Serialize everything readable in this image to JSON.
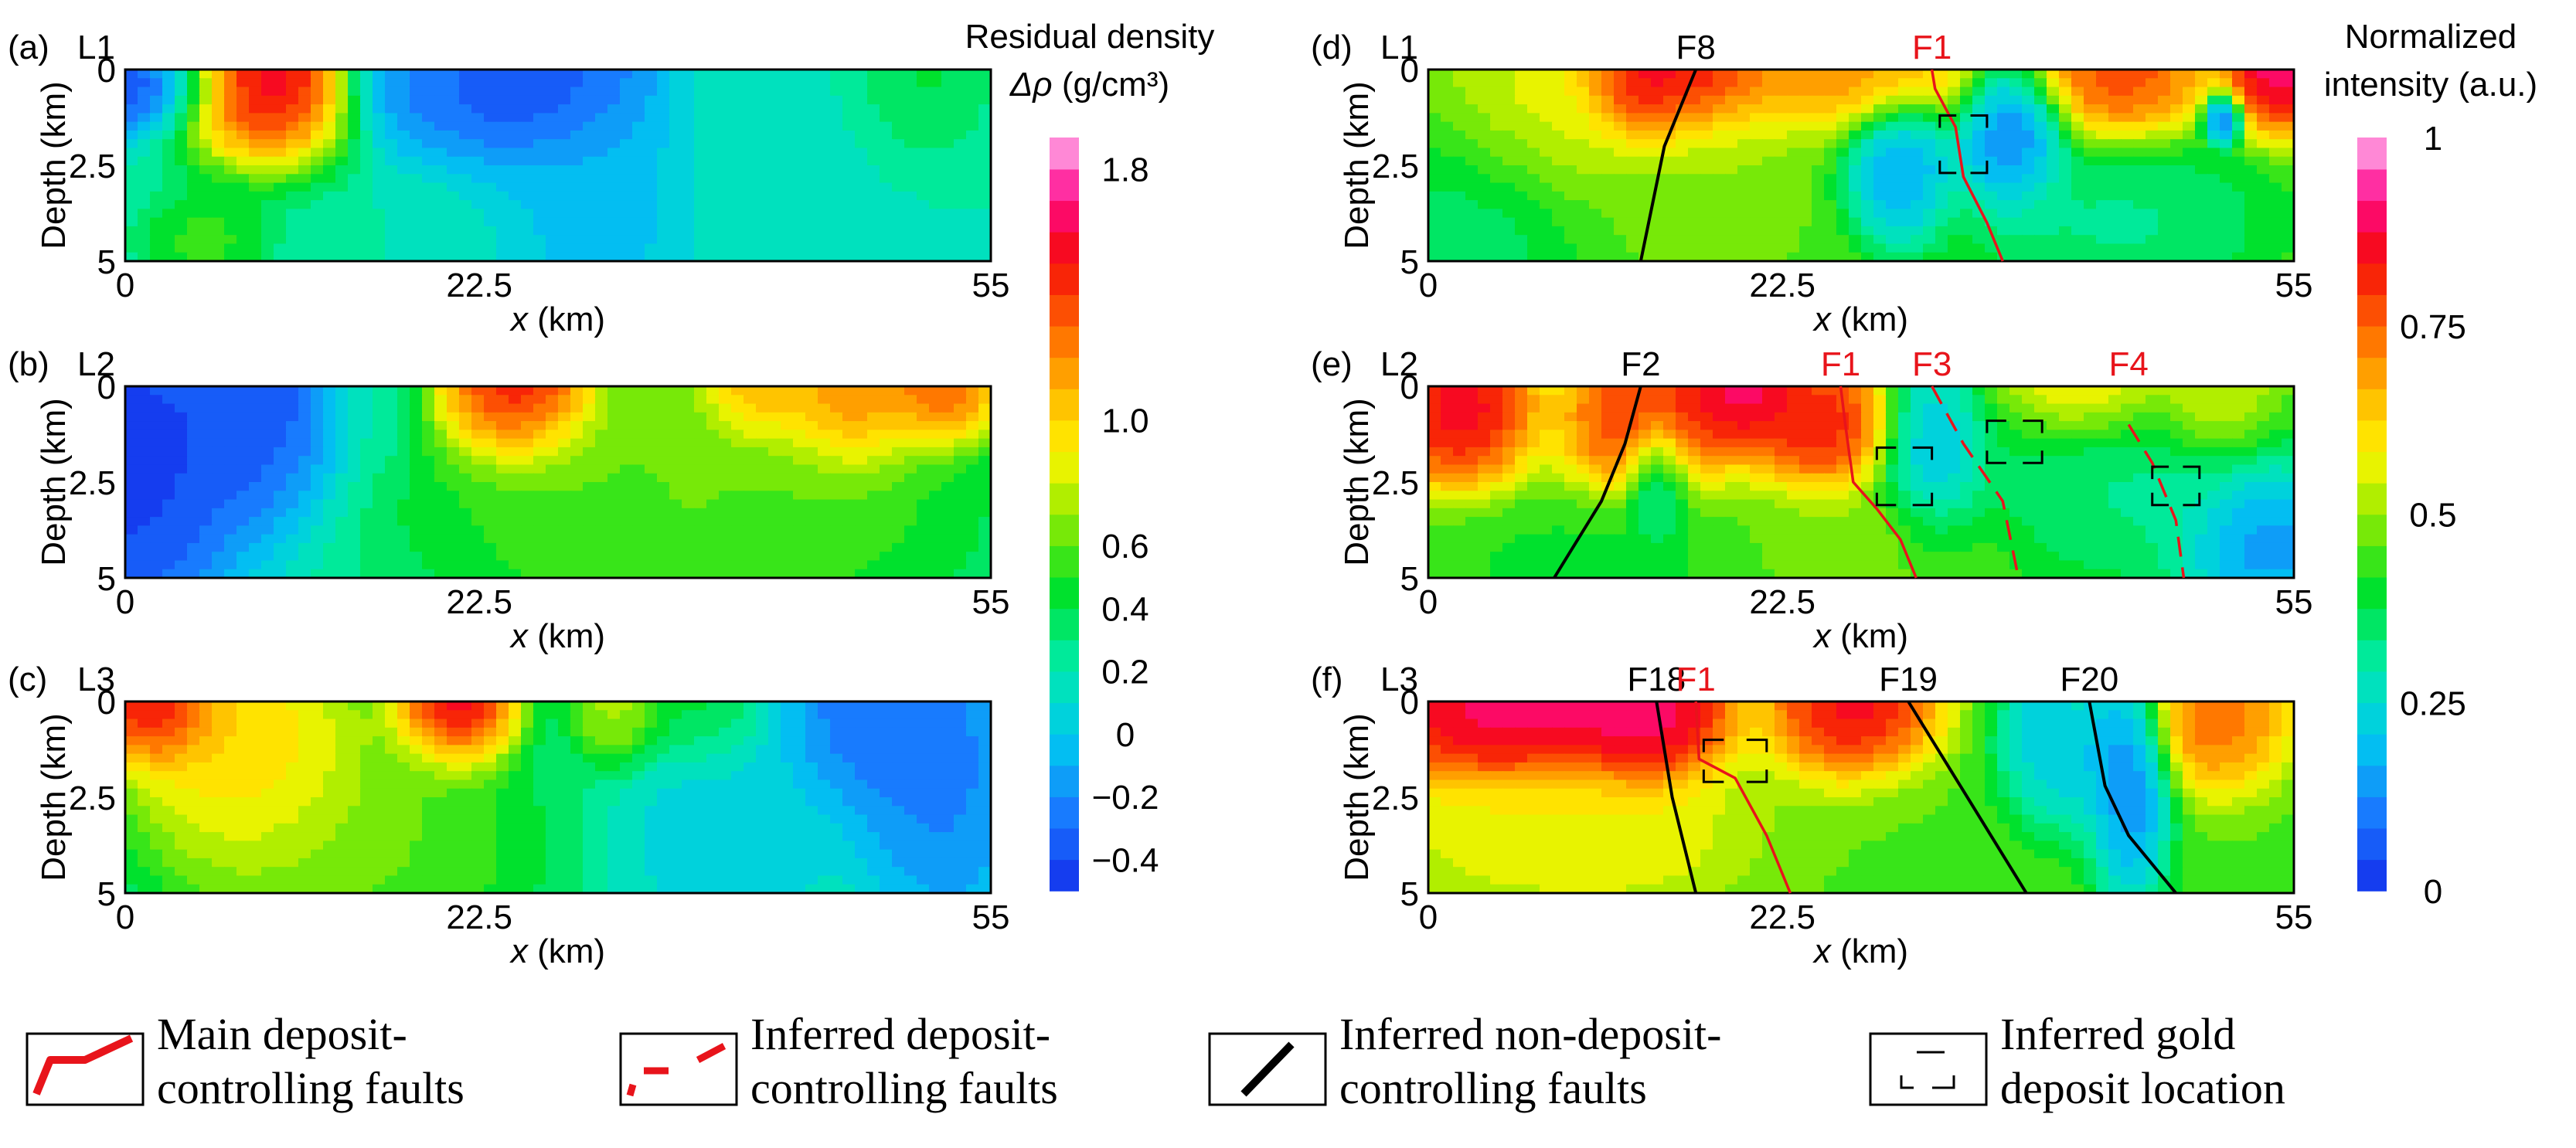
{
  "chart_data": {
    "type": "heatmap",
    "panels": [
      {
        "id": "a",
        "tag": "(a)",
        "line": "L1",
        "kind": "density",
        "blobs": [
          [
            0,
            0.3,
            -0.55,
            4.5,
            1.0
          ],
          [
            9.0,
            0.0,
            1.9,
            4.5,
            1.8
          ],
          [
            18.0,
            0.0,
            -0.3,
            3.5,
            1.5
          ],
          [
            26.0,
            0.2,
            -0.55,
            6.0,
            1.8
          ],
          [
            30.0,
            3.5,
            -0.1,
            4.5,
            3.0
          ],
          [
            43.0,
            1.0,
            0.15,
            6.0,
            2.5
          ],
          [
            50.0,
            0.3,
            0.5,
            3.5,
            1.5
          ],
          [
            5.0,
            4.5,
            0.6,
            3.0,
            1.0
          ]
        ]
      },
      {
        "id": "b",
        "tag": "(b)",
        "line": "L2",
        "kind": "density",
        "blobs": [
          [
            0,
            2.0,
            -0.6,
            5.5,
            3.5
          ],
          [
            8.0,
            0.5,
            -0.5,
            4.5,
            2.5
          ],
          [
            16.0,
            0.0,
            0.2,
            2.0,
            1.5
          ],
          [
            25.0,
            0.0,
            1.9,
            4.0,
            1.5
          ],
          [
            34.0,
            0.3,
            0.7,
            3.0,
            1.2
          ],
          [
            40.0,
            0.0,
            1.4,
            3.0,
            1.2
          ],
          [
            46.0,
            0.3,
            1.5,
            3.5,
            1.5
          ],
          [
            52.0,
            0.0,
            1.6,
            3.0,
            1.2
          ],
          [
            36.0,
            3.0,
            0.7,
            14.0,
            3.0
          ]
        ]
      },
      {
        "id": "c",
        "tag": "(c)",
        "line": "L3",
        "kind": "density",
        "blobs": [
          [
            2.0,
            0.0,
            1.9,
            3.0,
            1.3
          ],
          [
            8.0,
            1.5,
            1.2,
            6.0,
            2.5
          ],
          [
            21.0,
            0.0,
            1.9,
            3.0,
            1.3
          ],
          [
            15.0,
            3.8,
            0.7,
            9.0,
            2.5
          ],
          [
            31.5,
            0.2,
            0.9,
            2.5,
            1.2
          ],
          [
            37.0,
            0.2,
            0.6,
            3.0,
            1.3
          ],
          [
            48.0,
            0.3,
            -0.4,
            5.0,
            2.0
          ],
          [
            52.0,
            2.5,
            -0.3,
            4.0,
            2.5
          ],
          [
            38.0,
            3.0,
            0.0,
            5.0,
            3.0
          ]
        ]
      },
      {
        "id": "d",
        "tag": "(d)",
        "line": "L1",
        "kind": "intensity",
        "blobs": [
          [
            16.0,
            0.3,
            1.0,
            4.5,
            1.3
          ],
          [
            27.0,
            0.0,
            0.75,
            6.0,
            1.2
          ],
          [
            44.0,
            0.0,
            0.85,
            4.0,
            1.3
          ],
          [
            54.0,
            0.0,
            1.0,
            2.5,
            1.2
          ],
          [
            30.0,
            2.6,
            0.1,
            2.5,
            1.5
          ],
          [
            37.0,
            1.8,
            0.05,
            2.5,
            1.5
          ],
          [
            50.5,
            1.3,
            0.0,
            0.9,
            0.5
          ],
          [
            4.0,
            3.5,
            0.3,
            4.0,
            2.0
          ],
          [
            44.0,
            4.0,
            0.3,
            7.0,
            1.5
          ],
          [
            6.0,
            1.5,
            0.6,
            4.0,
            2.0
          ],
          [
            18.0,
            2.5,
            0.5,
            4.0,
            2.0
          ]
        ]
      },
      {
        "id": "e",
        "tag": "(e)",
        "line": "L2",
        "kind": "intensity",
        "blobs": [
          [
            2.0,
            0.5,
            0.95,
            3.5,
            1.6
          ],
          [
            14.0,
            0.8,
            0.9,
            4.0,
            1.6
          ],
          [
            20.0,
            0.0,
            1.0,
            3.0,
            1.2
          ],
          [
            25.0,
            1.0,
            0.9,
            3.5,
            1.3
          ],
          [
            14.5,
            2.5,
            0.2,
            1.6,
            1.3
          ],
          [
            32.0,
            1.8,
            0.15,
            2.5,
            2.0
          ],
          [
            45.0,
            2.5,
            0.3,
            8.0,
            2.0
          ],
          [
            53.0,
            4.0,
            0.05,
            4.0,
            1.5
          ],
          [
            42.0,
            0.0,
            0.65,
            4.0,
            1.2
          ],
          [
            50.0,
            0.5,
            0.6,
            3.0,
            1.2
          ],
          [
            10.0,
            4.5,
            0.4,
            8.0,
            1.2
          ],
          [
            28.0,
            4.0,
            0.5,
            6.0,
            1.2
          ]
        ]
      },
      {
        "id": "f",
        "tag": "(f)",
        "line": "L3",
        "kind": "intensity",
        "blobs": [
          [
            5.0,
            0.3,
            1.0,
            7.0,
            1.5
          ],
          [
            14.0,
            0.3,
            1.0,
            4.0,
            1.5
          ],
          [
            27.0,
            0.2,
            0.95,
            4.0,
            1.6
          ],
          [
            50.0,
            0.3,
            0.8,
            3.5,
            1.5
          ],
          [
            40.0,
            1.5,
            0.15,
            3.0,
            1.6
          ],
          [
            44.5,
            2.0,
            0.05,
            2.0,
            2.5
          ],
          [
            10.0,
            3.5,
            0.6,
            10.0,
            1.5
          ],
          [
            30.0,
            4.0,
            0.45,
            8.0,
            2.0
          ],
          [
            38.5,
            0.0,
            0.2,
            1.2,
            0.8
          ]
        ]
      }
    ],
    "axes": {
      "x_range": [
        0,
        55
      ],
      "x_ticks": [
        "0",
        "22.5",
        "55"
      ],
      "x_tick_values": [
        0,
        22.5,
        55
      ],
      "xlabel_var": "x",
      "xlabel_unit": " (km)",
      "y_range": [
        0,
        5
      ],
      "y_ticks": [
        "0",
        "2.5",
        "5"
      ],
      "y_tick_values": [
        0,
        2.5,
        5
      ],
      "ylabel": "Depth (km)"
    },
    "colorbars": [
      {
        "id": "density",
        "title_line1": "Residual density",
        "title_line2_symbol": "Δρ",
        "title_line2_unit": " (g/cm³)",
        "range": [
          -0.5,
          1.9
        ],
        "ticks": [
          {
            "value": 1.8,
            "label": "1.8"
          },
          {
            "value": 1.0,
            "label": "1.0"
          },
          {
            "value": 0.6,
            "label": "0.6"
          },
          {
            "value": 0.4,
            "label": "0.4"
          },
          {
            "value": 0.2,
            "label": "0.2"
          },
          {
            "value": 0.0,
            "label": "0"
          },
          {
            "value": -0.2,
            "label": "−0.2"
          },
          {
            "value": -0.4,
            "label": "−0.4"
          }
        ]
      },
      {
        "id": "intensity",
        "title_line1": "Normalized",
        "title_line2": "intensity (a.u.)",
        "range": [
          0,
          1
        ],
        "ticks": [
          {
            "value": 1,
            "label": "1"
          },
          {
            "value": 0.75,
            "label": "0.75"
          },
          {
            "value": 0.5,
            "label": "0.5"
          },
          {
            "value": 0.25,
            "label": "0.25"
          },
          {
            "value": 0,
            "label": "0"
          }
        ]
      }
    ],
    "faults": [
      {
        "panel": "d",
        "name": "F8",
        "kind": "noncontrolling",
        "pts": [
          [
            17.0,
            0
          ],
          [
            15.0,
            2.0
          ],
          [
            13.5,
            5.0
          ]
        ]
      },
      {
        "panel": "d",
        "name": "F1",
        "kind": "main",
        "pts": [
          [
            32.0,
            0
          ],
          [
            32.2,
            0.5
          ],
          [
            33.5,
            1.5
          ],
          [
            34.0,
            2.8
          ],
          [
            35.5,
            4.0
          ],
          [
            36.5,
            5.0
          ]
        ]
      },
      {
        "panel": "e",
        "name": "F2",
        "kind": "noncontrolling",
        "pts": [
          [
            13.5,
            0
          ],
          [
            12.5,
            1.5
          ],
          [
            11.0,
            3.0
          ],
          [
            8.0,
            5.0
          ]
        ]
      },
      {
        "panel": "e",
        "name": "F1",
        "kind": "main",
        "pts": [
          [
            26.2,
            0
          ],
          [
            26.5,
            1.0
          ],
          [
            27.0,
            2.5
          ],
          [
            28.5,
            3.2
          ],
          [
            30.0,
            4.0
          ],
          [
            31.0,
            5.0
          ]
        ]
      },
      {
        "panel": "e",
        "name": "F3",
        "kind": "inferred",
        "pts": [
          [
            32.0,
            0
          ],
          [
            34.0,
            1.5
          ],
          [
            36.5,
            3.0
          ],
          [
            37.5,
            5.0
          ]
        ]
      },
      {
        "panel": "e",
        "name": "F4",
        "kind": "inferred",
        "pts": [
          [
            44.5,
            1.0
          ],
          [
            46.0,
            2.0
          ],
          [
            47.5,
            3.5
          ],
          [
            48.0,
            5.0
          ]
        ]
      },
      {
        "panel": "f",
        "name": "F18",
        "kind": "noncontrolling",
        "pts": [
          [
            14.5,
            0
          ],
          [
            15.5,
            2.5
          ],
          [
            17.0,
            5.0
          ]
        ]
      },
      {
        "panel": "f",
        "name": "F1",
        "kind": "main",
        "pts": [
          [
            17.0,
            0
          ],
          [
            17.2,
            1.5
          ],
          [
            19.5,
            2.0
          ],
          [
            21.5,
            3.5
          ],
          [
            23.0,
            5.0
          ]
        ]
      },
      {
        "panel": "f",
        "name": "F19",
        "kind": "noncontrolling",
        "pts": [
          [
            30.5,
            0
          ],
          [
            33.5,
            2.0
          ],
          [
            36.5,
            4.0
          ],
          [
            38.0,
            5.0
          ]
        ]
      },
      {
        "panel": "f",
        "name": "F20",
        "kind": "noncontrolling",
        "pts": [
          [
            42.0,
            0
          ],
          [
            43.0,
            2.2
          ],
          [
            44.5,
            3.5
          ],
          [
            47.5,
            5.0
          ]
        ]
      }
    ],
    "deposits": [
      {
        "panel": "d",
        "x": [
          32.5,
          35.5
        ],
        "y": [
          1.2,
          2.7
        ]
      },
      {
        "panel": "e",
        "x": [
          28.5,
          32.0
        ],
        "y": [
          1.6,
          3.1
        ]
      },
      {
        "panel": "e",
        "x": [
          35.5,
          39.0
        ],
        "y": [
          0.9,
          2.0
        ]
      },
      {
        "panel": "e",
        "x": [
          46.0,
          49.0
        ],
        "y": [
          2.1,
          3.1
        ]
      },
      {
        "panel": "f",
        "x": [
          17.5,
          21.5
        ],
        "y": [
          1.0,
          2.1
        ]
      }
    ],
    "legend": [
      {
        "key": "main",
        "line1": "Main deposit-",
        "line2": "controlling faults"
      },
      {
        "key": "inferred",
        "line1": "Inferred deposit-",
        "line2": "controlling faults"
      },
      {
        "key": "noncontrolling",
        "line1": "Inferred non-deposit-",
        "line2": "controlling faults"
      },
      {
        "key": "deposit",
        "line1": "Inferred gold",
        "line2": "deposit location"
      }
    ],
    "colors": {
      "main_fault": "#e8141b",
      "inferred_fault": "#e8141b",
      "noncontrolling_fault": "#000000",
      "deposit_box": "#000000"
    }
  }
}
